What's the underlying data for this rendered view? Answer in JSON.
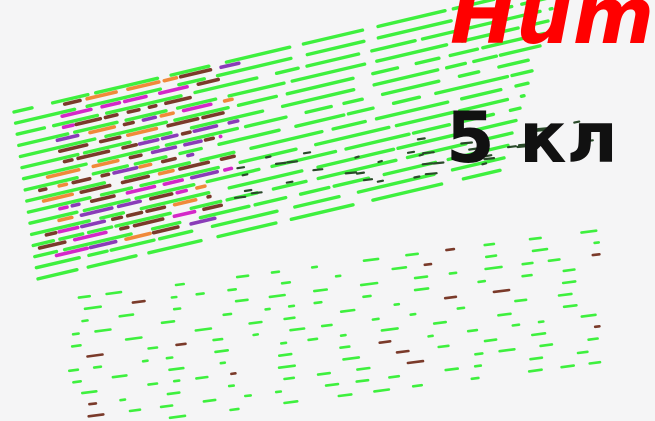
{
  "headline": {
    "line1": "Hum",
    "line2": "5 кл"
  },
  "colors": {
    "background": "#f5f5f6",
    "headline_red": "#ff0000",
    "headline_black": "#111111",
    "stripe_green": "#3ef03e",
    "stripe_dark": "#7a3a2a",
    "stripe_magenta": "#d428c8",
    "stripe_purple": "#8a3cb8",
    "stripe_orange": "#f08a3a"
  }
}
